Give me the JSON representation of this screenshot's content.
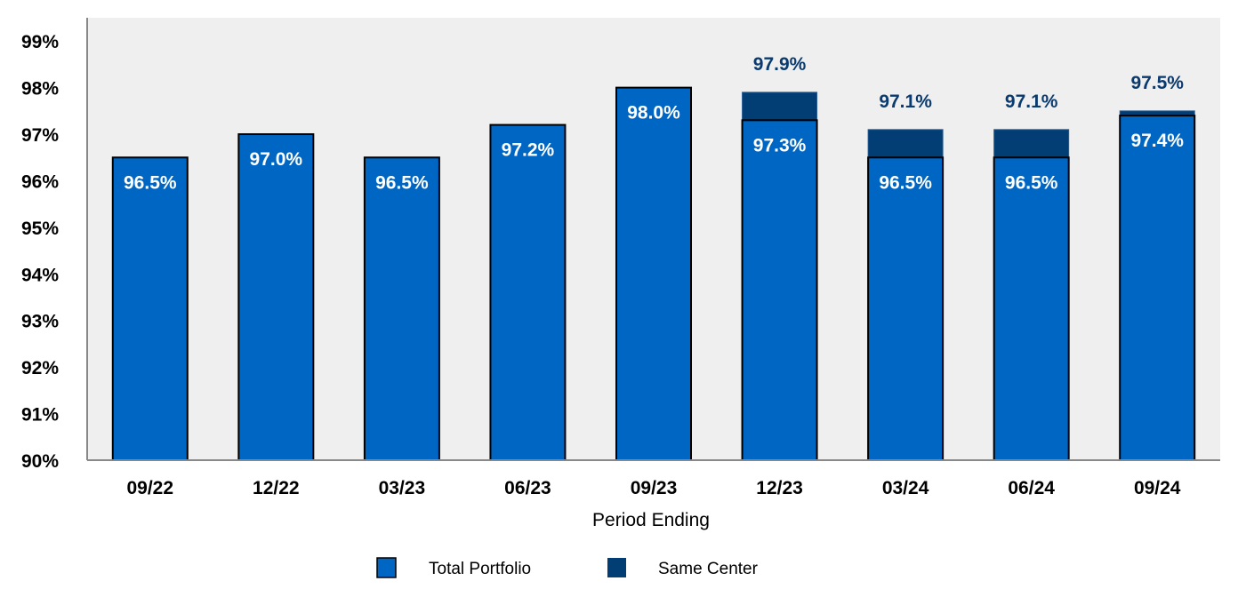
{
  "chart_data": {
    "type": "bar",
    "title": "",
    "xlabel": "Period Ending",
    "ylabel": "",
    "ylim": [
      90,
      99.5
    ],
    "yticks": [
      "90%",
      "91%",
      "92%",
      "93%",
      "94%",
      "95%",
      "96%",
      "97%",
      "98%",
      "99%"
    ],
    "grid": false,
    "legend_position": "bottom",
    "categories": [
      "09/22",
      "12/22",
      "03/23",
      "06/23",
      "09/23",
      "12/23",
      "03/24",
      "06/24",
      "09/24"
    ],
    "series": [
      {
        "name": "Total Portfolio",
        "color": "#0066c4",
        "values": [
          96.5,
          97.0,
          96.5,
          97.2,
          98.0,
          97.3,
          96.5,
          96.5,
          97.4
        ],
        "labels": [
          "96.5%",
          "97.0%",
          "96.5%",
          "97.2%",
          "98.0%",
          "97.3%",
          "96.5%",
          "96.5%",
          "97.4%"
        ]
      },
      {
        "name": "Same Center",
        "color": "#023e73",
        "values": [
          null,
          null,
          null,
          null,
          null,
          97.9,
          97.1,
          97.1,
          97.5
        ],
        "labels": [
          "",
          "",
          "",
          "",
          "",
          "97.9%",
          "97.1%",
          "97.1%",
          "97.5%"
        ]
      }
    ],
    "plot_background": "#efefef"
  }
}
